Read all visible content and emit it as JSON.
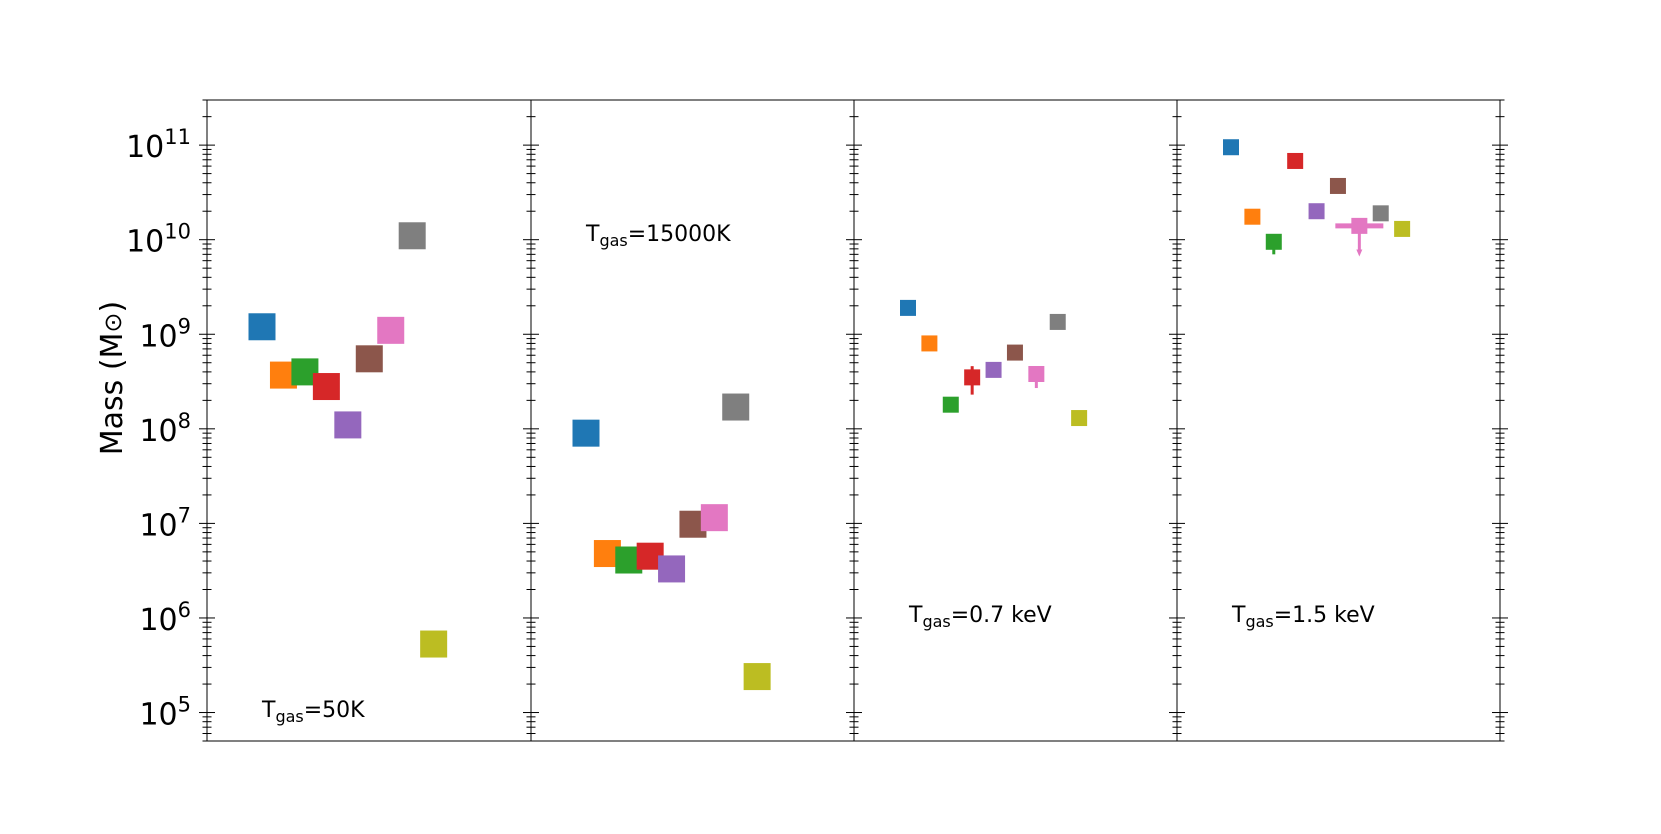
{
  "chart_data": {
    "type": "scatter",
    "ylabel": "Mass (M",
    "ylabel_symbol": "⊙",
    "ylabel_close": ")",
    "yscale": "log",
    "ylim": [
      50000,
      300000000000
    ],
    "y_tick_base": "10",
    "y_tick_exponents": [
      "5",
      "6",
      "7",
      "8",
      "9",
      "10",
      "11"
    ],
    "colors": [
      "#1f77b4",
      "#ff7f0e",
      "#2ca02c",
      "#d62728",
      "#9467bd",
      "#8c564b",
      "#e377c2",
      "#7f7f7f",
      "#bcbd22"
    ],
    "panels": [
      {
        "label_prefix": "T",
        "label_sub": "gas",
        "label_value": "=50K",
        "label_pos": "bottom-left",
        "marker": "large",
        "values": [
          1200000000,
          370000000,
          400000000,
          280000000,
          110000000,
          550000000,
          1100000000,
          11000000000,
          530000
        ]
      },
      {
        "label_prefix": "T",
        "label_sub": "gas",
        "label_value": "=15000K",
        "label_pos": "top-left",
        "marker": "large",
        "values": [
          90000000,
          4800000,
          4100000,
          4500000,
          3300000,
          9800000,
          11500000,
          170000000,
          240000
        ]
      },
      {
        "label_prefix": "T",
        "label_sub": "gas",
        "label_value": "=0.7 keV",
        "label_pos": "bottom-left",
        "marker": "small",
        "values": [
          1900000000,
          800000000,
          180000000,
          350000000,
          420000000,
          640000000,
          380000000,
          1350000000,
          130000000
        ],
        "errors": [
          {
            "series": 2,
            "low": 160000000,
            "high": 190000000
          },
          {
            "series": 3,
            "low": 230000000,
            "high": 460000000
          },
          {
            "series": 6,
            "low": 270000000,
            "high": 450000000
          }
        ]
      },
      {
        "label_prefix": "T",
        "label_sub": "gas",
        "label_value": "=1.5 keV",
        "label_pos": "bottom-left",
        "marker": "small",
        "values": [
          95000000000,
          17500000000,
          9500000000,
          68000000000,
          20000000000,
          37000000000,
          14000000000,
          19000000000,
          13000000000
        ],
        "errors": [
          {
            "series": 2,
            "low": 7000000000,
            "high": 10500000000
          }
        ],
        "upper_limits": [
          {
            "series": 6,
            "value": 14000000000,
            "low": 6800000000
          }
        ]
      }
    ]
  }
}
